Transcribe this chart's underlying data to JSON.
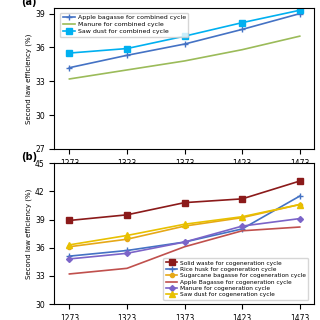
{
  "x": [
    1273,
    1323,
    1373,
    1423,
    1473
  ],
  "panel_a": {
    "ylim": [
      27,
      39.5
    ],
    "yticks": [
      27,
      30,
      33,
      36,
      39
    ],
    "series": [
      {
        "label": "Apple bagasse for combined cycle",
        "color": "#4472c4",
        "marker": "+",
        "markersize": 5,
        "linewidth": 1.2,
        "values": [
          34.2,
          35.3,
          36.3,
          37.6,
          39.0
        ]
      },
      {
        "label": "Manure for combined cycle",
        "color": "#9bbb59",
        "marker": "None",
        "markersize": 4,
        "linewidth": 1.2,
        "values": [
          33.2,
          34.0,
          34.8,
          35.8,
          37.0
        ]
      },
      {
        "label": "Saw dust for combined cycle",
        "color": "#00b0f0",
        "marker": "s",
        "markersize": 4,
        "linewidth": 1.2,
        "values": [
          35.5,
          35.9,
          37.0,
          38.2,
          39.3
        ]
      }
    ]
  },
  "panel_b": {
    "ylim": [
      30,
      45
    ],
    "yticks": [
      30,
      33,
      36,
      39,
      42,
      45
    ],
    "series": [
      {
        "label": "Solid waste for cogeneration cycle",
        "color": "#8b1a1a",
        "marker": "s",
        "markersize": 4,
        "linewidth": 1.2,
        "values": [
          38.9,
          39.5,
          40.8,
          41.2,
          43.1
        ]
      },
      {
        "label": "Rice husk for cogeneration cycle",
        "color": "#4472c4",
        "marker": "+",
        "markersize": 5,
        "linewidth": 1.2,
        "values": [
          35.1,
          35.7,
          36.6,
          38.0,
          41.5
        ]
      },
      {
        "label": "Sugarcane bagasse for cogeneration cycle",
        "color": "#e6a817",
        "marker": "o",
        "markersize": 3,
        "linewidth": 1.2,
        "values": [
          36.1,
          36.9,
          38.3,
          39.2,
          40.6
        ]
      },
      {
        "label": "Apple Bagasse for cogeneration cycle",
        "color": "#c0504d",
        "marker": "None",
        "markersize": 4,
        "linewidth": 1.2,
        "values": [
          33.2,
          33.8,
          36.1,
          37.8,
          38.2
        ]
      },
      {
        "label": "Manure for cogeneration cycle",
        "color": "#7b64c8",
        "marker": "D",
        "markersize": 3,
        "linewidth": 1.2,
        "values": [
          34.8,
          35.4,
          36.6,
          38.3,
          39.1
        ]
      },
      {
        "label": "Saw dust for cogeneration cycle",
        "color": "#e8c000",
        "marker": "^",
        "markersize": 4,
        "linewidth": 1.2,
        "values": [
          36.3,
          37.3,
          38.5,
          39.3,
          40.6
        ]
      }
    ]
  }
}
